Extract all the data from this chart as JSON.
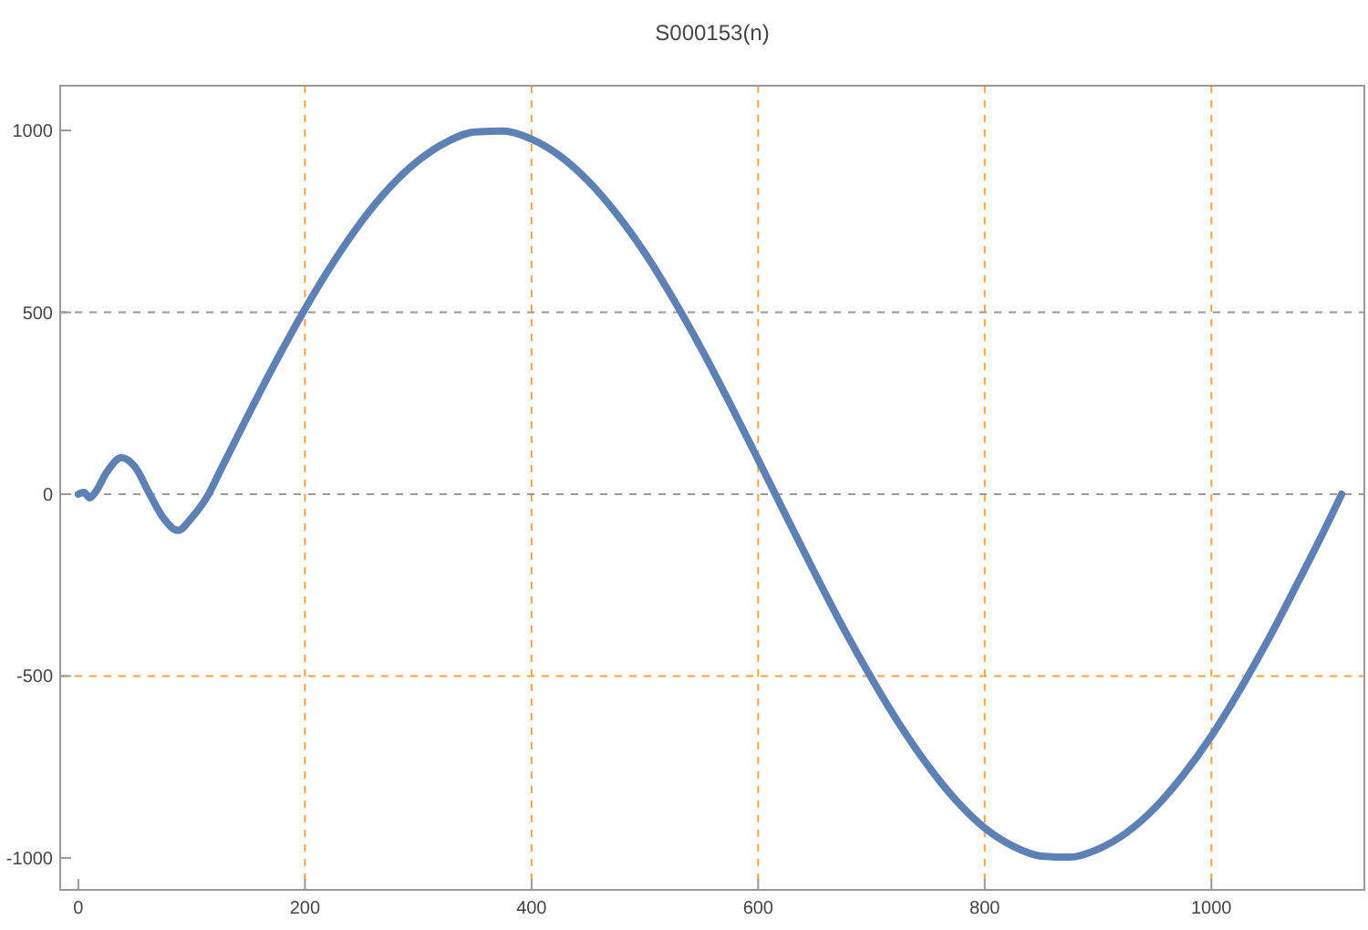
{
  "chart_data": {
    "type": "line",
    "title": "S000153(n)",
    "x": [
      0,
      5,
      10,
      15,
      25,
      38,
      50,
      63,
      75,
      88,
      100,
      115,
      125,
      150,
      175,
      200,
      225,
      250,
      275,
      300,
      325,
      350,
      375,
      400,
      425,
      450,
      475,
      500,
      525,
      550,
      575,
      600,
      625,
      650,
      675,
      700,
      725,
      750,
      775,
      800,
      825,
      850,
      875,
      900,
      925,
      950,
      975,
      1000,
      1025,
      1050,
      1075,
      1100,
      1115
    ],
    "series": [
      {
        "color": "#5e81b5",
        "values": [
          0,
          5,
          -10,
          5,
          60,
          100,
          75,
          0,
          -65,
          -100,
          -65,
          0,
          63,
          218,
          368,
          509,
          637,
          750,
          844,
          917,
          968,
          996,
          998,
          976,
          930,
          861,
          771,
          663,
          537,
          399,
          250,
          95,
          -62,
          -217,
          -367,
          -506,
          -634,
          -747,
          -843,
          -918,
          -968,
          -995,
          -998,
          -976,
          -931,
          -863,
          -773,
          -665,
          -539,
          -401,
          -251,
          -97,
          0
        ]
      }
    ],
    "xlim": [
      -16,
      1135
    ],
    "ylim": [
      -1088,
      1123
    ],
    "xticks": [
      0,
      200,
      400,
      600,
      800,
      1000
    ],
    "yticks": [
      -1000,
      -500,
      0,
      500,
      1000
    ],
    "marker": "none",
    "line_style": "solid",
    "grid": false,
    "ref_lines": [
      {
        "axis": "x",
        "value": 200,
        "color": "#f5a340",
        "line_style": "dashed"
      },
      {
        "axis": "x",
        "value": 400,
        "color": "#f5a340",
        "line_style": "dashed"
      },
      {
        "axis": "x",
        "value": 600,
        "color": "#f5a340",
        "line_style": "dashed"
      },
      {
        "axis": "x",
        "value": 800,
        "color": "#f5a340",
        "line_style": "dashed"
      },
      {
        "axis": "x",
        "value": 1000,
        "color": "#f5a340",
        "line_style": "dashed"
      },
      {
        "axis": "y",
        "value": 500,
        "color": "#999999",
        "line_style": "dashed"
      },
      {
        "axis": "y",
        "value": 0,
        "color": "#999999",
        "line_style": "dashed"
      },
      {
        "axis": "y",
        "value": -500,
        "color": "#f5a340",
        "line_style": "dashed"
      }
    ]
  }
}
